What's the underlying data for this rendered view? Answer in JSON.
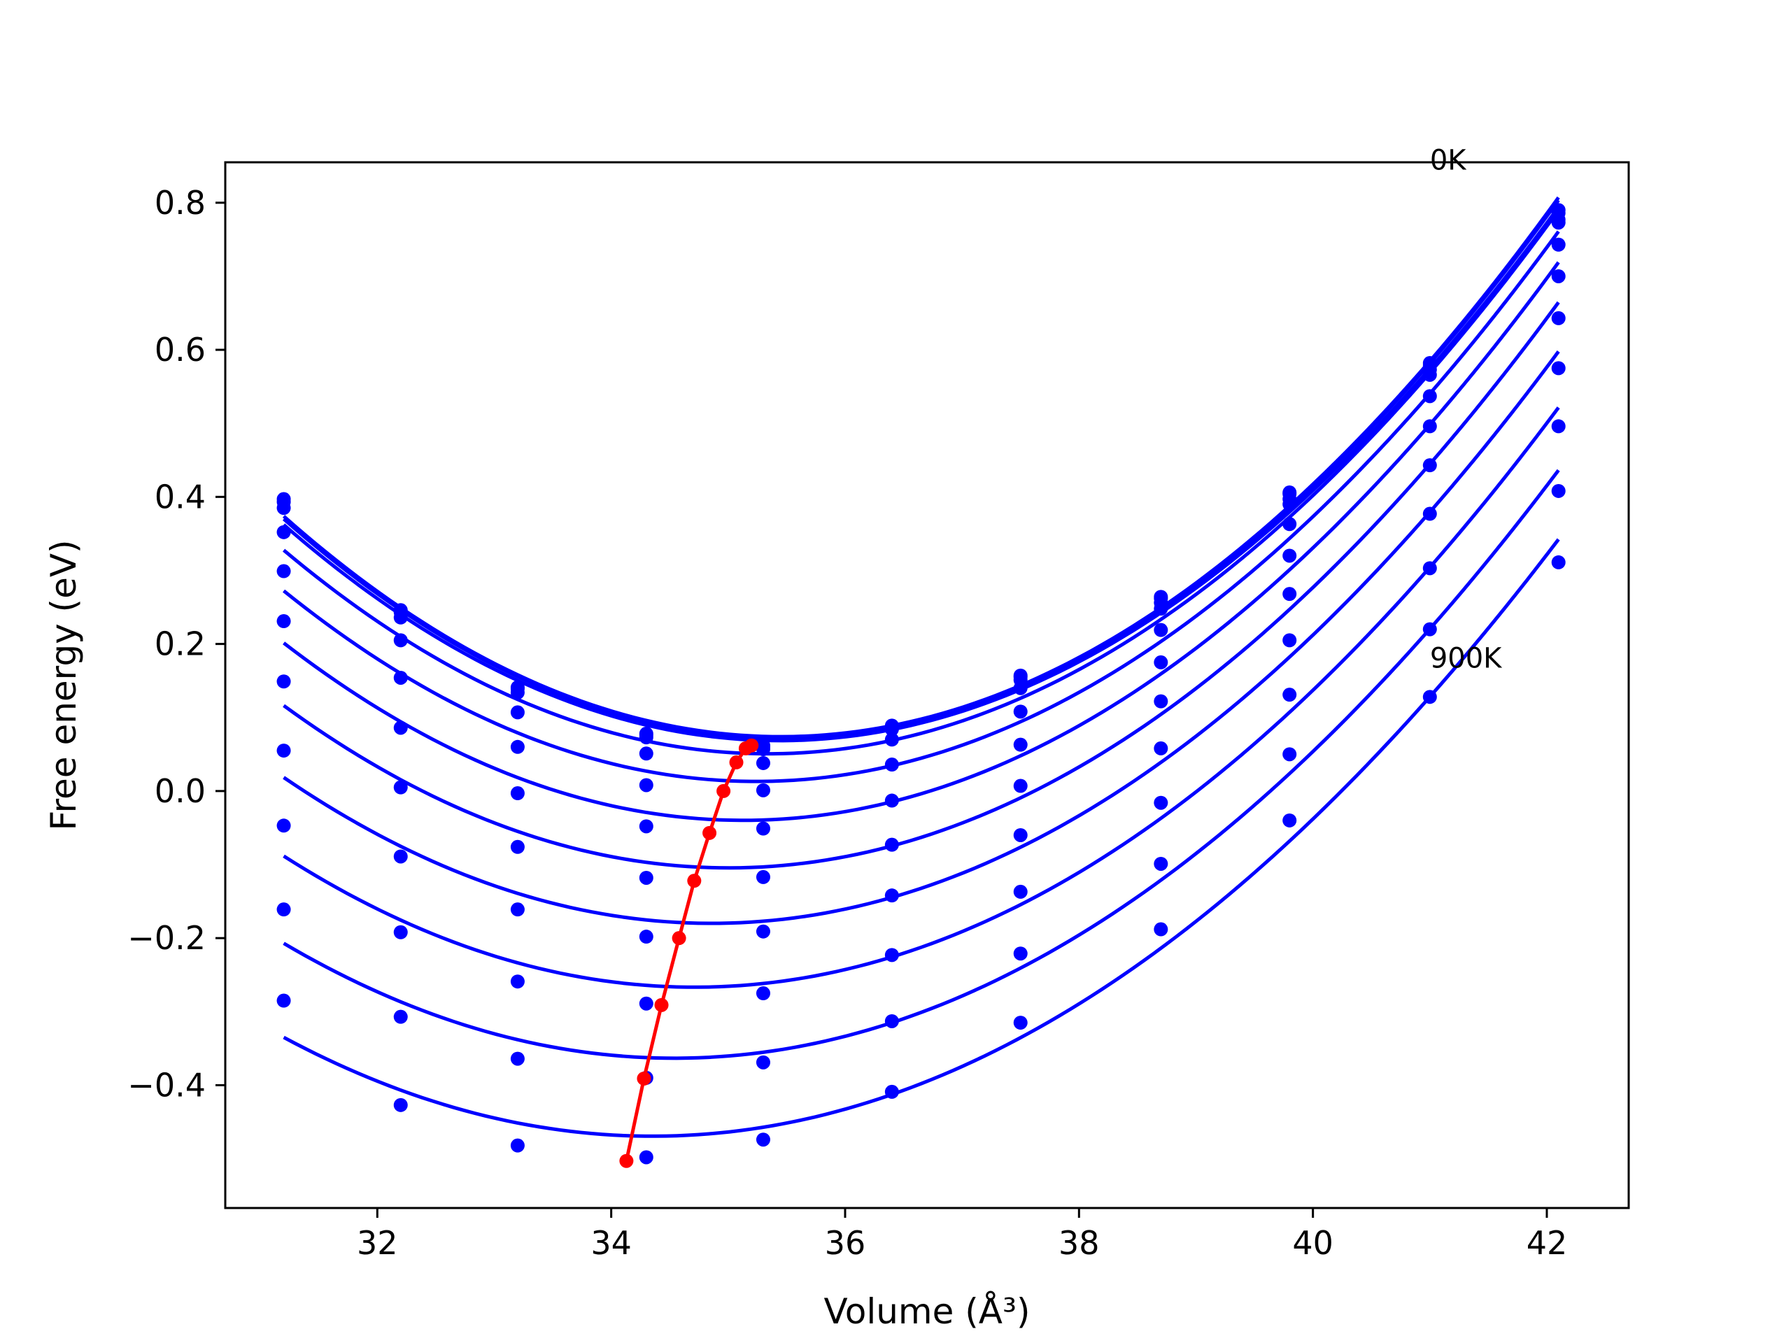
{
  "chart_data": {
    "type": "line",
    "xlabel": "Volume (Å³)",
    "ylabel": "Free energy (eV)",
    "xlim": [
      30.7,
      42.7
    ],
    "ylim": [
      -0.567,
      0.855
    ],
    "xticks": [
      32,
      34,
      36,
      38,
      40,
      42
    ],
    "xtick_labels": [
      "32",
      "34",
      "36",
      "38",
      "40",
      "42"
    ],
    "yticks": [
      -0.4,
      -0.2,
      0.0,
      0.2,
      0.4,
      0.6,
      0.8
    ],
    "ytick_labels": [
      "−0.4",
      "−0.2",
      "0.0",
      "0.2",
      "0.4",
      "0.6",
      "0.8"
    ],
    "grid": false,
    "legend": "none",
    "colors": {
      "isotherm": "#0000ff",
      "minimum": "#ff0000"
    },
    "annotations": [
      {
        "text": "0K",
        "x": 41.0,
        "y": 0.845
      },
      {
        "text": "900K",
        "x": 41.0,
        "y": 0.168
      }
    ],
    "volume_points": [
      31.2,
      32.2,
      33.2,
      34.3,
      35.3,
      36.4,
      37.5,
      38.7,
      39.8,
      41.0,
      42.1
    ],
    "series": [
      {
        "values": [
          0.397,
          0.246,
          0.141,
          0.078,
          0.062,
          0.089,
          0.157,
          0.264,
          0.406,
          0.582,
          0.79
        ]
      },
      {
        "values": [
          0.393,
          0.243,
          0.139,
          0.076,
          0.06,
          0.087,
          0.155,
          0.262,
          0.404,
          0.579,
          0.786
        ]
      },
      {
        "values": [
          0.385,
          0.236,
          0.134,
          0.073,
          0.057,
          0.084,
          0.151,
          0.256,
          0.397,
          0.573,
          0.777
        ]
      },
      {
        "values": [
          0.352,
          0.205,
          0.107,
          0.051,
          0.038,
          0.07,
          0.14,
          0.248,
          0.39,
          0.566,
          0.773
        ]
      },
      {
        "values": [
          0.299,
          0.154,
          0.06,
          0.008,
          0.001,
          0.036,
          0.108,
          0.219,
          0.363,
          0.537,
          0.743
        ]
      },
      {
        "values": [
          0.231,
          0.086,
          -0.003,
          -0.048,
          -0.051,
          -0.013,
          0.063,
          0.175,
          0.32,
          0.496,
          0.7
        ]
      },
      {
        "values": [
          0.149,
          0.005,
          -0.076,
          -0.118,
          -0.117,
          -0.073,
          0.007,
          0.122,
          0.268,
          0.443,
          0.643
        ]
      },
      {
        "values": [
          0.055,
          -0.089,
          -0.161,
          -0.198,
          -0.191,
          -0.142,
          -0.06,
          0.058,
          0.205,
          0.377,
          0.575
        ]
      },
      {
        "values": [
          -0.047,
          -0.192,
          -0.259,
          -0.289,
          -0.275,
          -0.223,
          -0.137,
          -0.016,
          0.131,
          0.303,
          0.496
        ]
      },
      {
        "values": [
          -0.161,
          -0.307,
          -0.364,
          -0.39,
          -0.369,
          -0.313,
          -0.221,
          -0.099,
          0.05,
          0.22,
          0.408
        ]
      },
      {
        "values": [
          -0.285,
          -0.427,
          -0.482,
          -0.498,
          -0.474,
          -0.409,
          -0.315,
          -0.188,
          -0.04,
          0.128,
          0.311
        ]
      }
    ],
    "minimum_curve": {
      "x": [
        35.2,
        35.15,
        35.07,
        34.96,
        34.84,
        34.71,
        34.58,
        34.43,
        34.28,
        34.13
      ],
      "y": [
        0.062,
        0.058,
        0.039,
        0.0,
        -0.057,
        -0.122,
        -0.2,
        -0.291,
        -0.391,
        -0.503
      ]
    }
  }
}
